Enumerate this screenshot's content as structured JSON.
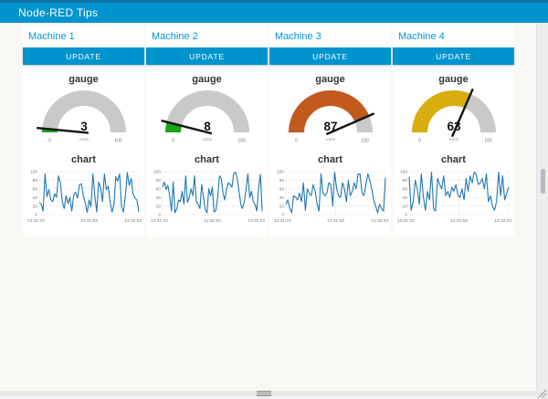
{
  "header": {
    "title": "Node-RED Tips"
  },
  "theme": {
    "primary": "#0094CE",
    "header_top": "#1273A2",
    "page_bg": "#FAF8F4",
    "panel_bg": "#FFFFFF",
    "gauge_track": "#C9C9C9",
    "needle": "#111111",
    "chart_line": "#1F77B4",
    "grid_line": "#E6E6E6",
    "tick_text": "#777777",
    "scrollbar_track": "#ECEDEE",
    "scrollbar_thumb": "#B7BABD"
  },
  "machines": [
    {
      "name": "Machine 1",
      "button_label": "UPDATE",
      "gauge": {
        "title": "gauge",
        "value": 3,
        "min": 0,
        "max": 100,
        "units_label": "units",
        "color": "#18A418"
      },
      "chart": {
        "title": "chart",
        "type": "line",
        "x_ticks": [
          "12:31:23",
          "12:31:53",
          "12:32:23"
        ],
        "y_ticks": [
          0,
          20,
          40,
          60,
          80,
          100
        ],
        "ylim": [
          0,
          100
        ],
        "values": [
          28,
          25,
          8,
          95,
          42,
          58,
          35,
          30,
          48,
          40,
          90,
          74,
          30,
          14,
          44,
          26,
          40,
          8,
          46,
          52,
          38,
          70,
          72,
          44,
          28,
          5,
          34,
          18,
          95,
          44,
          6,
          76,
          64,
          30,
          95,
          58,
          66,
          28,
          6,
          24,
          88,
          78,
          95,
          18,
          6,
          44,
          98,
          68,
          84,
          48,
          38,
          34,
          6
        ]
      }
    },
    {
      "name": "Machine 2",
      "button_label": "UPDATE",
      "gauge": {
        "title": "gauge",
        "value": 8,
        "min": 0,
        "max": 100,
        "units_label": "units",
        "color": "#18A418"
      },
      "chart": {
        "title": "chart",
        "type": "line",
        "x_ticks": [
          "12:31:23",
          "12:31:53",
          "12:32:23"
        ],
        "y_ticks": [
          0,
          20,
          40,
          60,
          80,
          100
        ],
        "ylim": [
          0,
          100
        ],
        "values": [
          64,
          76,
          58,
          68,
          44,
          8,
          76,
          4,
          14,
          34,
          30,
          54,
          24,
          90,
          28,
          40,
          60,
          44,
          90,
          30,
          24,
          14,
          70,
          40,
          12,
          4,
          60,
          44,
          64,
          6,
          10,
          40,
          90,
          84,
          50,
          34,
          60,
          74,
          70,
          64,
          95,
          99,
          84,
          54,
          24,
          14,
          30,
          60,
          95,
          40,
          54,
          30,
          24,
          8,
          60,
          94,
          8
        ]
      }
    },
    {
      "name": "Machine 3",
      "button_label": "UPDATE",
      "gauge": {
        "title": "gauge",
        "value": 87,
        "min": 0,
        "max": 100,
        "units_label": "units",
        "color": "#C25A1D"
      },
      "chart": {
        "title": "chart",
        "type": "line",
        "x_ticks": [
          "12:31:23",
          "12:31:53",
          "12:32:23"
        ],
        "y_ticks": [
          0,
          20,
          40,
          60,
          80,
          100
        ],
        "ylim": [
          0,
          100
        ],
        "values": [
          24,
          34,
          14,
          4,
          44,
          40,
          34,
          50,
          30,
          74,
          10,
          60,
          50,
          44,
          70,
          54,
          24,
          8,
          95,
          50,
          44,
          50,
          74,
          70,
          20,
          99,
          60,
          44,
          40,
          74,
          60,
          30,
          80,
          44,
          54,
          74,
          60,
          95,
          94,
          50,
          44,
          70,
          95,
          80,
          60,
          34,
          20,
          4,
          24,
          14,
          8,
          86
        ]
      }
    },
    {
      "name": "Machine 4",
      "button_label": "UPDATE",
      "gauge": {
        "title": "gauge",
        "value": 63,
        "min": 0,
        "max": 100,
        "units_label": "units",
        "color": "#D9AE0F"
      },
      "chart": {
        "title": "chart",
        "type": "line",
        "x_ticks": [
          "12:31:23",
          "12:31:53",
          "12:32:23"
        ],
        "y_ticks": [
          0,
          20,
          40,
          60,
          80,
          100
        ],
        "ylim": [
          0,
          100
        ],
        "values": [
          88,
          10,
          30,
          80,
          60,
          24,
          95,
          40,
          10,
          54,
          34,
          99,
          14,
          8,
          84,
          70,
          60,
          90,
          44,
          54,
          40,
          64,
          54,
          70,
          44,
          40,
          60,
          34,
          84,
          54,
          90,
          74,
          99,
          94,
          70,
          74,
          84,
          60,
          95,
          30,
          44,
          20,
          10,
          30,
          99,
          44,
          90,
          34,
          50,
          64
        ]
      }
    }
  ]
}
